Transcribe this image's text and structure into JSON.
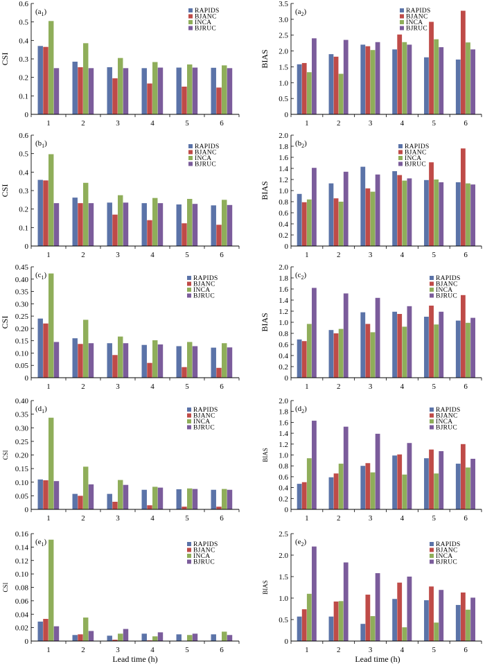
{
  "figure": {
    "xlabel": "Lead time (h)",
    "colors": {
      "RAPIDS": "#5b73a8",
      "BJANC": "#bf4b48",
      "INCA": "#8fae5a",
      "BJRUC": "#7b5c9b"
    },
    "legend": [
      "RAPIDS",
      "BJANC",
      "INCA",
      "BJRUC"
    ]
  },
  "chart_data": [
    {
      "id": "a1",
      "type": "bar",
      "panel_label": "a",
      "panel_sub": "1",
      "ylabel": "CSI",
      "ylabel_size": "large",
      "categories": [
        "1",
        "2",
        "3",
        "4",
        "5",
        "6"
      ],
      "xlabel": "Lead time (h)",
      "ylim": [
        0,
        0.6
      ],
      "yticks": [
        "0",
        "0.1",
        "0.2",
        "0.3",
        "0.4",
        "0.5",
        "0.6"
      ],
      "series": [
        {
          "name": "RAPIDS",
          "values": [
            0.37,
            0.285,
            0.255,
            0.25,
            0.253,
            0.252
          ]
        },
        {
          "name": "BJANC",
          "values": [
            0.365,
            0.255,
            0.195,
            0.167,
            0.15,
            0.145
          ]
        },
        {
          "name": "INCA",
          "values": [
            0.505,
            0.385,
            0.305,
            0.283,
            0.27,
            0.265
          ]
        },
        {
          "name": "BJRUC",
          "values": [
            0.25,
            0.25,
            0.25,
            0.253,
            0.253,
            0.25
          ]
        }
      ]
    },
    {
      "id": "a2",
      "type": "bar",
      "panel_label": "a",
      "panel_sub": "2",
      "ylabel": "BIAS",
      "ylabel_size": "large",
      "categories": [
        "1",
        "2",
        "3",
        "4",
        "5",
        "6"
      ],
      "xlabel": "Lead time (h)",
      "ylim": [
        0,
        3.5
      ],
      "yticks": [
        "0",
        "0.5",
        "1.0",
        "1.5",
        "2.0",
        "2.5",
        "3.0",
        "3.5"
      ],
      "series": [
        {
          "name": "RAPIDS",
          "values": [
            1.58,
            1.9,
            2.2,
            2.05,
            1.8,
            1.73
          ]
        },
        {
          "name": "BJANC",
          "values": [
            1.62,
            1.82,
            2.15,
            2.52,
            2.92,
            3.27
          ]
        },
        {
          "name": "INCA",
          "values": [
            1.33,
            1.28,
            2.03,
            2.28,
            2.37,
            2.27
          ]
        },
        {
          "name": "BJRUC",
          "values": [
            2.4,
            2.35,
            2.28,
            2.2,
            2.12,
            2.05
          ]
        }
      ]
    },
    {
      "id": "b1",
      "type": "bar",
      "panel_label": "b",
      "panel_sub": "1",
      "ylabel": "CSI",
      "ylabel_size": "large",
      "categories": [
        "1",
        "2",
        "3",
        "4",
        "5",
        "6"
      ],
      "xlabel": "Lead time (h)",
      "ylim": [
        0,
        0.6
      ],
      "yticks": [
        "0",
        "0.1",
        "0.2",
        "0.3",
        "0.4",
        "0.5",
        "0.6"
      ],
      "series": [
        {
          "name": "RAPIDS",
          "values": [
            0.358,
            0.262,
            0.235,
            0.232,
            0.225,
            0.22
          ]
        },
        {
          "name": "BJANC",
          "values": [
            0.355,
            0.232,
            0.17,
            0.14,
            0.123,
            0.115
          ]
        },
        {
          "name": "INCA",
          "values": [
            0.497,
            0.342,
            0.275,
            0.26,
            0.255,
            0.25
          ]
        },
        {
          "name": "BJRUC",
          "values": [
            0.232,
            0.232,
            0.235,
            0.232,
            0.228,
            0.222
          ]
        }
      ]
    },
    {
      "id": "b2",
      "type": "bar",
      "panel_label": "b",
      "panel_sub": "2",
      "ylabel": "BIAS",
      "ylabel_size": "large",
      "categories": [
        "1",
        "2",
        "3",
        "4",
        "5",
        "6"
      ],
      "xlabel": "Lead time (h)",
      "ylim": [
        0,
        2.0
      ],
      "yticks": [
        "0",
        "0.2",
        "0.4",
        "0.6",
        "0.8",
        "1.0",
        "1.2",
        "1.4",
        "1.6",
        "1.8",
        "2.0"
      ],
      "series": [
        {
          "name": "RAPIDS",
          "values": [
            0.94,
            1.13,
            1.43,
            1.35,
            1.19,
            1.15
          ]
        },
        {
          "name": "BJANC",
          "values": [
            0.79,
            0.86,
            1.04,
            1.28,
            1.51,
            1.76
          ]
        },
        {
          "name": "INCA",
          "values": [
            0.84,
            0.8,
            0.98,
            1.18,
            1.2,
            1.13
          ]
        },
        {
          "name": "BJRUC",
          "values": [
            1.41,
            1.34,
            1.29,
            1.22,
            1.15,
            1.11
          ]
        }
      ]
    },
    {
      "id": "c1",
      "type": "bar",
      "panel_label": "c",
      "panel_sub": "1",
      "ylabel": "CSI",
      "ylabel_size": "large",
      "categories": [
        "1",
        "2",
        "3",
        "4",
        "5",
        "6"
      ],
      "xlabel": "Lead time (h)",
      "ylim": [
        0,
        0.45
      ],
      "yticks": [
        "0",
        "0.05",
        "0.10",
        "0.15",
        "0.20",
        "0.25",
        "0.30",
        "0.35",
        "0.40",
        "0.45"
      ],
      "series": [
        {
          "name": "RAPIDS",
          "values": [
            0.24,
            0.16,
            0.14,
            0.133,
            0.128,
            0.122
          ]
        },
        {
          "name": "BJANC",
          "values": [
            0.22,
            0.137,
            0.092,
            0.06,
            0.043,
            0.04
          ]
        },
        {
          "name": "INCA",
          "values": [
            0.423,
            0.235,
            0.167,
            0.152,
            0.145,
            0.14
          ]
        },
        {
          "name": "BJRUC",
          "values": [
            0.145,
            0.14,
            0.14,
            0.135,
            0.128,
            0.123
          ]
        }
      ]
    },
    {
      "id": "c2",
      "type": "bar",
      "panel_label": "c",
      "panel_sub": "2",
      "ylabel": "BIAS",
      "ylabel_size": "large",
      "categories": [
        "1",
        "2",
        "3",
        "4",
        "5",
        "6"
      ],
      "xlabel": "Lead time (h)",
      "ylim": [
        0,
        2.0
      ],
      "yticks": [
        "0",
        "0.2",
        "0.4",
        "0.6",
        "0.8",
        "1.0",
        "1.2",
        "1.4",
        "1.6",
        "1.8",
        "2.0"
      ],
      "series": [
        {
          "name": "RAPIDS",
          "values": [
            0.69,
            0.86,
            1.18,
            1.19,
            1.1,
            1.03
          ]
        },
        {
          "name": "BJANC",
          "values": [
            0.66,
            0.8,
            0.97,
            1.15,
            1.3,
            1.49
          ]
        },
        {
          "name": "INCA",
          "values": [
            0.97,
            0.88,
            0.82,
            0.92,
            0.96,
            0.99
          ]
        },
        {
          "name": "BJRUC",
          "values": [
            1.62,
            1.52,
            1.44,
            1.29,
            1.19,
            1.08
          ]
        }
      ]
    },
    {
      "id": "d1",
      "type": "bar",
      "panel_label": "d",
      "panel_sub": "1",
      "ylabel": "CSI",
      "ylabel_size": "small",
      "categories": [
        "1",
        "2",
        "3",
        "4",
        "5",
        "6"
      ],
      "xlabel": "Lead time (h)",
      "ylim": [
        0,
        0.4
      ],
      "yticks": [
        "0",
        "0.05",
        "0.10",
        "0.15",
        "0.20",
        "0.25",
        "0.30",
        "0.35",
        "0.40"
      ],
      "series": [
        {
          "name": "RAPIDS",
          "values": [
            0.11,
            0.057,
            0.057,
            0.072,
            0.074,
            0.072
          ]
        },
        {
          "name": "BJANC",
          "values": [
            0.107,
            0.05,
            0.028,
            0.015,
            0.01,
            0.01
          ]
        },
        {
          "name": "INCA",
          "values": [
            0.337,
            0.157,
            0.108,
            0.083,
            0.077,
            0.075
          ]
        },
        {
          "name": "BJRUC",
          "values": [
            0.104,
            0.092,
            0.09,
            0.08,
            0.075,
            0.072
          ]
        }
      ]
    },
    {
      "id": "d2",
      "type": "bar",
      "panel_label": "d",
      "panel_sub": "2",
      "ylabel": "BIAS",
      "ylabel_size": "small",
      "categories": [
        "1",
        "2",
        "3",
        "4",
        "5",
        "6"
      ],
      "xlabel": "Lead time (h)",
      "ylim": [
        0,
        2.0
      ],
      "yticks": [
        "0",
        "0.2",
        "0.4",
        "0.6",
        "0.8",
        "1.0",
        "1.2",
        "1.4",
        "1.6",
        "1.8",
        "2.0"
      ],
      "series": [
        {
          "name": "RAPIDS",
          "values": [
            0.47,
            0.59,
            0.8,
            0.99,
            0.94,
            0.84
          ]
        },
        {
          "name": "BJANC",
          "values": [
            0.5,
            0.66,
            0.85,
            1.01,
            1.1,
            1.2
          ]
        },
        {
          "name": "INCA",
          "values": [
            0.94,
            0.84,
            0.68,
            0.64,
            0.66,
            0.77
          ]
        },
        {
          "name": "BJRUC",
          "values": [
            1.63,
            1.52,
            1.39,
            1.22,
            1.07,
            0.93
          ]
        }
      ]
    },
    {
      "id": "e1",
      "type": "bar",
      "panel_label": "e",
      "panel_sub": "1",
      "ylabel": "CSI",
      "ylabel_size": "small",
      "categories": [
        "1",
        "2",
        "3",
        "4",
        "5",
        "6"
      ],
      "xlabel": "Lead time (h)",
      "ylim": [
        0,
        0.16
      ],
      "yticks": [
        "0",
        "0.02",
        "0.04",
        "0.06",
        "0.08",
        "0.10",
        "0.12",
        "0.14",
        "0.16"
      ],
      "series": [
        {
          "name": "RAPIDS",
          "values": [
            0.029,
            0.009,
            0.008,
            0.011,
            0.01,
            0.01
          ]
        },
        {
          "name": "BJANC",
          "values": [
            0.033,
            0.01,
            0.002,
            0.001,
            0.0,
            0.0
          ]
        },
        {
          "name": "INCA",
          "values": [
            0.151,
            0.035,
            0.011,
            0.007,
            0.009,
            0.014
          ]
        },
        {
          "name": "BJRUC",
          "values": [
            0.022,
            0.015,
            0.018,
            0.013,
            0.011,
            0.009
          ]
        }
      ]
    },
    {
      "id": "e2",
      "type": "bar",
      "panel_label": "e",
      "panel_sub": "2",
      "ylabel": "BIAS",
      "ylabel_size": "small",
      "categories": [
        "1",
        "2",
        "3",
        "4",
        "5",
        "6"
      ],
      "xlabel": "Lead time (h)",
      "ylim": [
        0,
        2.5
      ],
      "yticks": [
        "0",
        "0.5",
        "1.0",
        "1.5",
        "2.0",
        "2.5"
      ],
      "series": [
        {
          "name": "RAPIDS",
          "values": [
            0.57,
            0.57,
            0.4,
            0.98,
            0.95,
            0.84
          ]
        },
        {
          "name": "BJANC",
          "values": [
            0.74,
            0.92,
            1.08,
            1.36,
            1.27,
            1.13
          ]
        },
        {
          "name": "INCA",
          "values": [
            1.1,
            0.93,
            0.58,
            0.32,
            0.43,
            0.73
          ]
        },
        {
          "name": "BJRUC",
          "values": [
            2.2,
            1.83,
            1.58,
            1.5,
            1.19,
            1.01
          ]
        }
      ]
    }
  ]
}
